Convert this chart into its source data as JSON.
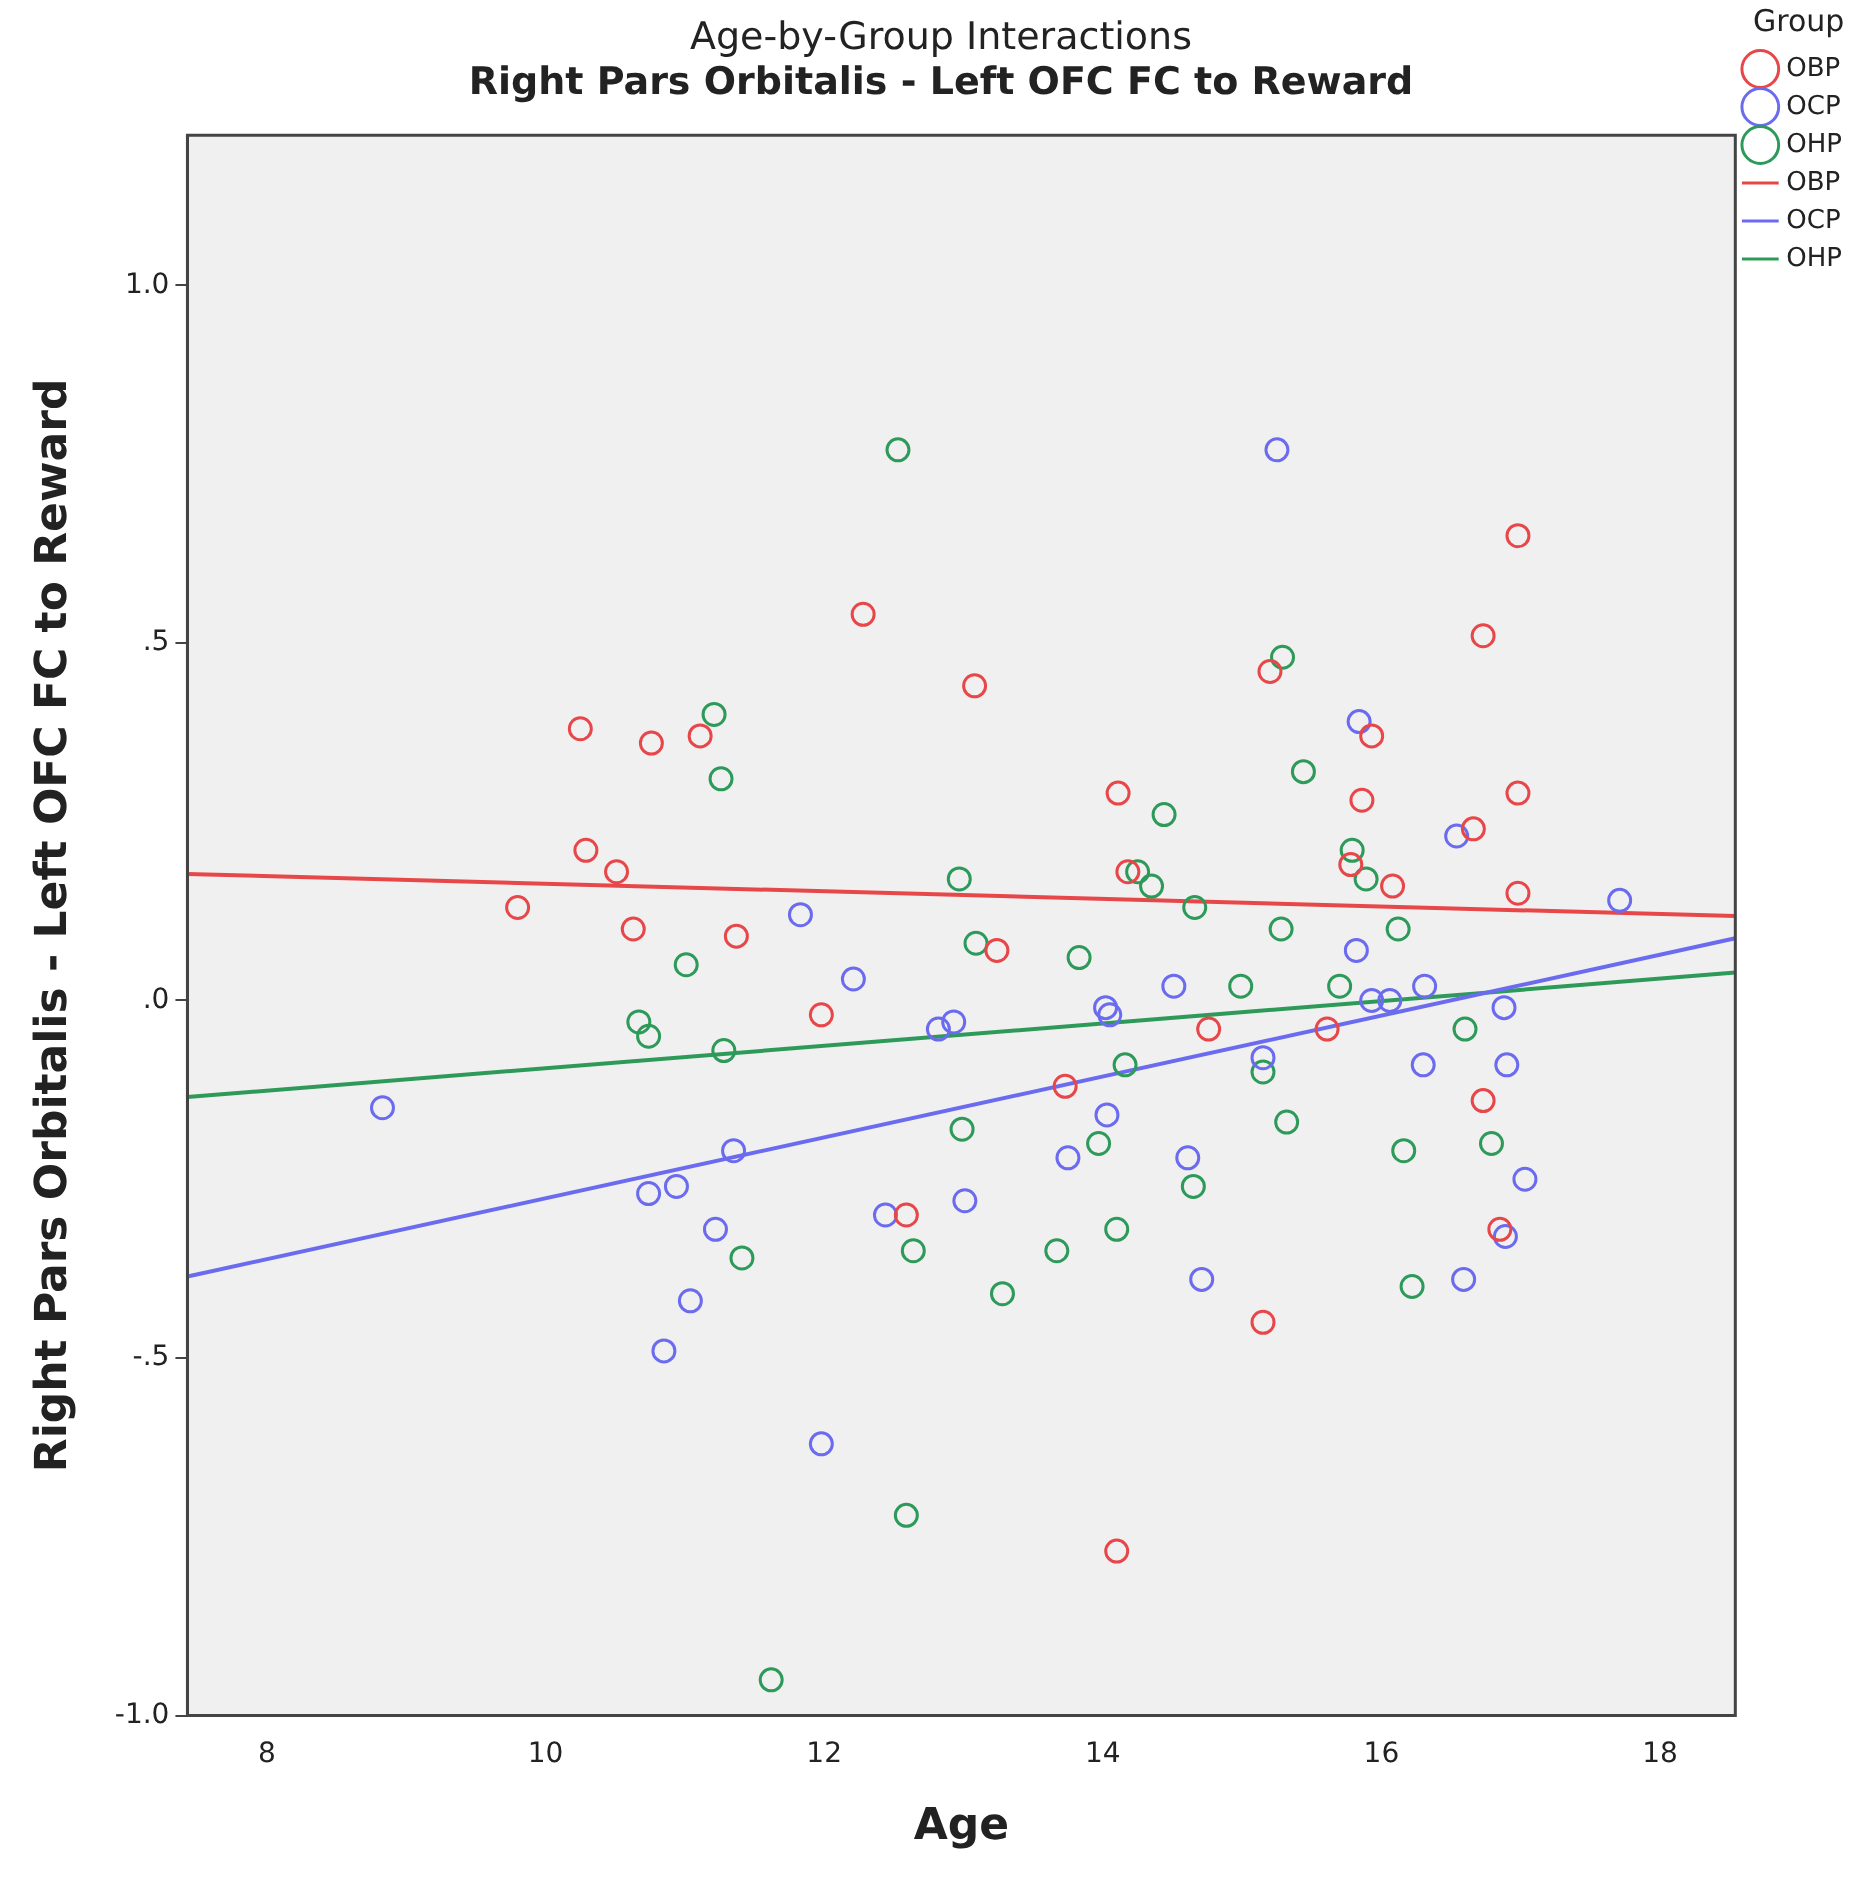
{
  "chart_data": {
    "type": "scatter",
    "title": "Age-by-Group Interactions",
    "subtitle": "Right Pars Orbitalis - Left OFC FC to Reward",
    "xlabel": "Age",
    "ylabel": "Right Pars Orbitalis - Left OFC FC to Reward",
    "legend_title": "Group",
    "legend": "right",
    "grid": false,
    "marker": "circle",
    "xlim": [
      7.43,
      18.54
    ],
    "xticks": [
      8,
      10,
      12,
      14,
      16,
      18
    ],
    "ylim": [
      -1.0,
      1.21
    ],
    "yticks": [
      {
        "value": -1,
        "label": "-1.0"
      },
      {
        "value": -0.5,
        "label": "-.5"
      },
      {
        "value": 0,
        "label": ".0"
      },
      {
        "value": 0.5,
        "label": ".5"
      },
      {
        "value": 1,
        "label": "1.0"
      }
    ],
    "series": [
      {
        "name": "OBP",
        "color": "#e8474a",
        "x": [
          9.8,
          10.25,
          10.29,
          10.51,
          10.63,
          10.76,
          11.11,
          11.37,
          11.98,
          12.28,
          12.59,
          13.08,
          13.24,
          13.73,
          14.1,
          14.11,
          14.18,
          14.76,
          15.15,
          15.2,
          15.61,
          15.78,
          15.86,
          15.93,
          16.08,
          16.66,
          16.73,
          16.73,
          16.85,
          16.98,
          16.98,
          16.98
        ],
        "values": [
          0.13,
          0.38,
          0.21,
          0.18,
          0.1,
          0.36,
          0.37,
          0.09,
          -0.02,
          0.54,
          -0.3,
          0.44,
          0.07,
          -0.12,
          -0.77,
          0.29,
          0.18,
          -0.04,
          -0.45,
          0.46,
          -0.04,
          0.19,
          0.28,
          0.37,
          0.16,
          0.24,
          0.51,
          -0.14,
          -0.32,
          0.65,
          0.29,
          0.15
        ]
      },
      {
        "name": "OCP",
        "color": "#6b6bf0",
        "x": [
          8.83,
          10.74,
          10.85,
          10.94,
          11.04,
          11.22,
          11.35,
          11.83,
          11.98,
          12.21,
          12.44,
          12.82,
          12.93,
          13.01,
          13.75,
          14.02,
          14.03,
          14.05,
          14.51,
          14.61,
          14.71,
          15.15,
          15.25,
          15.82,
          15.84,
          15.93,
          16.06,
          16.3,
          16.31,
          16.54,
          16.59,
          16.88,
          16.89,
          16.9,
          17.03,
          17.71
        ],
        "values": [
          -0.15,
          -0.27,
          -0.49,
          -0.26,
          -0.42,
          -0.32,
          -0.21,
          0.12,
          -0.62,
          0.03,
          -0.3,
          -0.04,
          -0.03,
          -0.28,
          -0.22,
          -0.01,
          -0.16,
          -0.02,
          0.02,
          -0.22,
          -0.39,
          -0.08,
          0.77,
          0.07,
          0.39,
          0.0,
          0.0,
          -0.09,
          0.02,
          0.23,
          -0.39,
          -0.01,
          -0.33,
          -0.09,
          -0.25,
          0.14
        ]
      },
      {
        "name": "OHP",
        "color": "#2e9a5a",
        "x": [
          10.67,
          10.74,
          11.01,
          11.21,
          11.26,
          11.28,
          11.41,
          11.62,
          12.53,
          12.59,
          12.64,
          12.97,
          12.99,
          13.09,
          13.28,
          13.67,
          13.83,
          13.97,
          14.1,
          14.16,
          14.25,
          14.35,
          14.44,
          14.65,
          14.66,
          14.99,
          15.15,
          15.28,
          15.29,
          15.32,
          15.44,
          15.7,
          15.79,
          15.89,
          16.12,
          16.16,
          16.22,
          16.6,
          16.79
        ],
        "values": [
          -0.03,
          -0.05,
          0.05,
          0.4,
          0.31,
          -0.07,
          -0.36,
          -0.95,
          0.77,
          -0.72,
          -0.35,
          0.17,
          -0.18,
          0.08,
          -0.41,
          -0.35,
          0.06,
          -0.2,
          -0.32,
          -0.09,
          0.18,
          0.16,
          0.26,
          -0.26,
          0.13,
          0.02,
          -0.1,
          0.1,
          0.48,
          -0.17,
          0.32,
          0.02,
          0.21,
          0.17,
          0.1,
          -0.21,
          -0.4,
          -0.04,
          -0.2
        ]
      },
      {
        "name": "OBP",
        "color": "#e8474a",
        "type": "line",
        "marker": "none",
        "x": [
          7.43,
          18.54
        ],
        "values": [
          0.177,
          0.118
        ]
      },
      {
        "name": "OCP",
        "color": "#6b6bf0",
        "type": "line",
        "marker": "none",
        "x": [
          7.43,
          18.54
        ],
        "values": [
          -0.386,
          0.087
        ]
      },
      {
        "name": "OHP",
        "color": "#2e9a5a",
        "type": "line",
        "marker": "none",
        "x": [
          7.43,
          18.54
        ],
        "values": [
          -0.135,
          0.039
        ]
      }
    ]
  }
}
